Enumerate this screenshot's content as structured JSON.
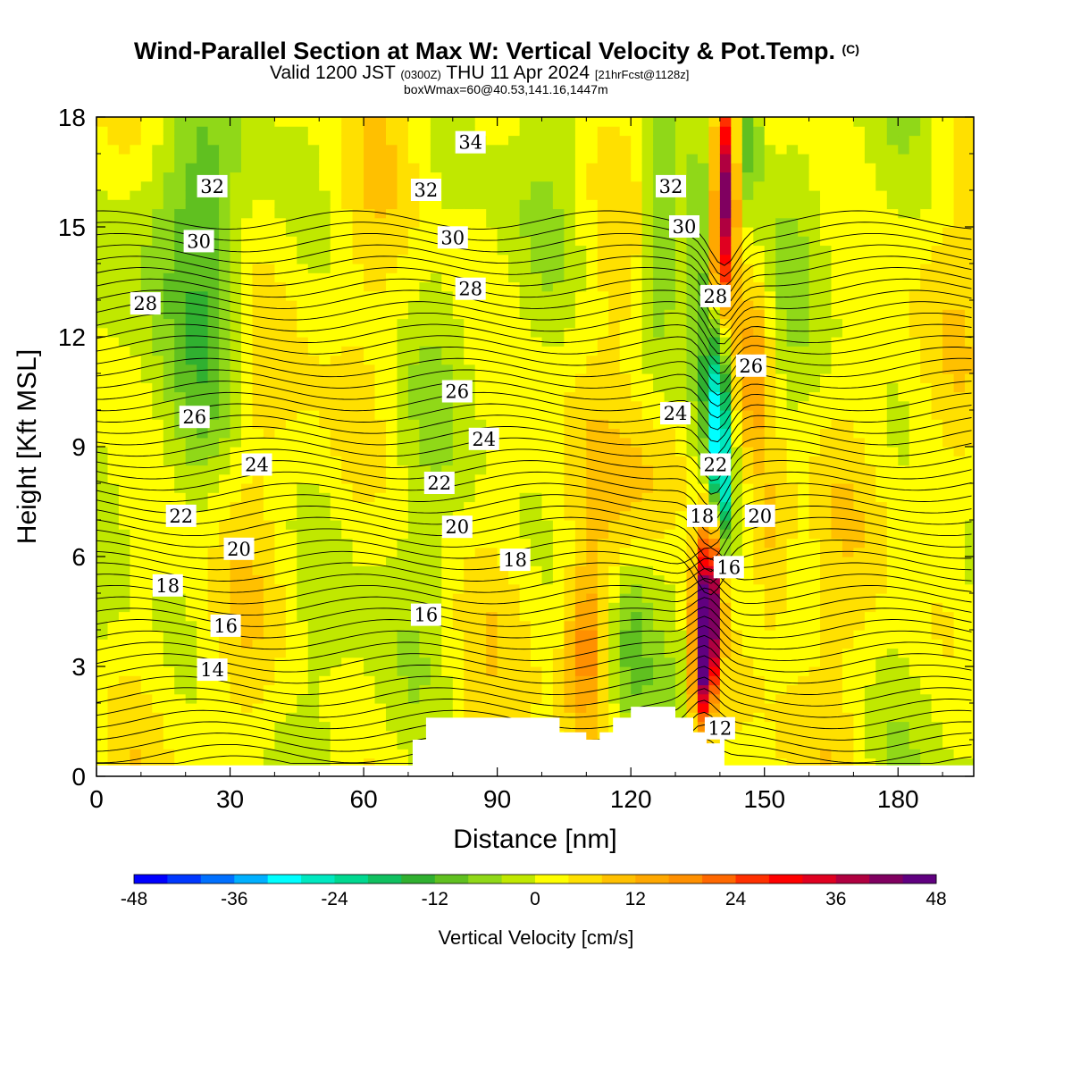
{
  "header": {
    "title": "Wind-Parallel Section at Max W: Vertical Velocity & Pot.Temp.",
    "copyright": "(C)",
    "valid_prefix": "Valid 1200 JST",
    "valid_utc": "(0300Z)",
    "valid_date": "THU 11 Apr 2024",
    "forecast": "[21hrFcst@1128z]",
    "box_info": "boxWmax=60@40.53,141.16,1447m"
  },
  "chart_data": {
    "type": "heatmap",
    "title": "Wind-Parallel Section at Max W: Vertical Velocity & Pot.Temp.",
    "xlabel": "Distance [nm]",
    "ylabel": "Height [Kft MSL]",
    "xlim": [
      0,
      197
    ],
    "ylim": [
      0,
      18
    ],
    "x_ticks": [
      0,
      30,
      60,
      90,
      120,
      150,
      180
    ],
    "y_ticks": [
      0,
      3,
      6,
      9,
      12,
      15,
      18
    ],
    "colorbar": {
      "title": "Vertical Velocity [cm/s]",
      "range": [
        -48,
        48
      ],
      "ticks": [
        -48,
        -36,
        -24,
        -12,
        0,
        12,
        24,
        36,
        48
      ],
      "colors": [
        "#0000ff",
        "#0038ff",
        "#0070ff",
        "#00b0ff",
        "#00ffff",
        "#00e8c0",
        "#00d890",
        "#10c060",
        "#30b030",
        "#60c020",
        "#90d818",
        "#c0e800",
        "#ffff00",
        "#ffe000",
        "#ffc000",
        "#ffa800",
        "#ff9000",
        "#ff6800",
        "#ff3000",
        "#ff0000",
        "#e00020",
        "#b00040",
        "#800060",
        "#600080"
      ]
    },
    "terrain": [
      [
        0,
        0.3
      ],
      [
        60,
        0.3
      ],
      [
        71,
        0.3
      ],
      [
        71,
        1.0
      ],
      [
        74,
        1.0
      ],
      [
        74,
        1.6
      ],
      [
        104,
        1.6
      ],
      [
        104,
        1.2
      ],
      [
        110,
        1.2
      ],
      [
        110,
        1.0
      ],
      [
        113,
        1.0
      ],
      [
        113,
        1.2
      ],
      [
        116,
        1.2
      ],
      [
        116,
        1.6
      ],
      [
        120,
        1.6
      ],
      [
        120,
        1.9
      ],
      [
        130,
        1.9
      ],
      [
        130,
        1.6
      ],
      [
        134,
        1.6
      ],
      [
        134,
        1.2
      ],
      [
        137,
        1.2
      ],
      [
        137,
        0.9
      ],
      [
        140,
        0.9
      ],
      [
        140,
        1.2
      ],
      [
        141,
        1.2
      ],
      [
        141,
        0.3
      ],
      [
        197,
        0.3
      ]
    ],
    "vertical_velocity_features": [
      {
        "kind": "updraft",
        "x": 137,
        "y": 3.7,
        "value": 44
      },
      {
        "kind": "updraft",
        "x": 141,
        "y": 16.5,
        "value": 36
      },
      {
        "kind": "downdraft",
        "x": 139,
        "y": 10.0,
        "value": -30
      },
      {
        "kind": "downdraft",
        "x": 140,
        "y": 8.0,
        "value": -24
      },
      {
        "kind": "downdraft",
        "x": 146,
        "y": 17.5,
        "value": -16
      },
      {
        "kind": "updraft",
        "x": 110,
        "y": 3.5,
        "value": 16
      },
      {
        "kind": "updraft",
        "x": 147,
        "y": 11.0,
        "value": 14
      }
    ],
    "theta_labels": [
      {
        "v": "34",
        "x": 84,
        "y": 17.3
      },
      {
        "v": "32",
        "x": 26,
        "y": 16.1
      },
      {
        "v": "32",
        "x": 74,
        "y": 16.0
      },
      {
        "v": "32",
        "x": 129,
        "y": 16.1
      },
      {
        "v": "30",
        "x": 23,
        "y": 14.6
      },
      {
        "v": "30",
        "x": 80,
        "y": 14.7
      },
      {
        "v": "30",
        "x": 132,
        "y": 15.0
      },
      {
        "v": "28",
        "x": 11,
        "y": 12.9
      },
      {
        "v": "28",
        "x": 84,
        "y": 13.3
      },
      {
        "v": "28",
        "x": 139,
        "y": 13.1
      },
      {
        "v": "26",
        "x": 22,
        "y": 9.8
      },
      {
        "v": "26",
        "x": 81,
        "y": 10.5
      },
      {
        "v": "26",
        "x": 147,
        "y": 11.2
      },
      {
        "v": "24",
        "x": 36,
        "y": 8.5
      },
      {
        "v": "24",
        "x": 87,
        "y": 9.2
      },
      {
        "v": "24",
        "x": 130,
        "y": 9.9
      },
      {
        "v": "22",
        "x": 19,
        "y": 7.1
      },
      {
        "v": "22",
        "x": 77,
        "y": 8.0
      },
      {
        "v": "22",
        "x": 139,
        "y": 8.5
      },
      {
        "v": "20",
        "x": 32,
        "y": 6.2
      },
      {
        "v": "20",
        "x": 81,
        "y": 6.8
      },
      {
        "v": "20",
        "x": 149,
        "y": 7.1
      },
      {
        "v": "18",
        "x": 16,
        "y": 5.2
      },
      {
        "v": "18",
        "x": 94,
        "y": 5.9
      },
      {
        "v": "18",
        "x": 136,
        "y": 7.1
      },
      {
        "v": "16",
        "x": 29,
        "y": 4.1
      },
      {
        "v": "16",
        "x": 74,
        "y": 4.4
      },
      {
        "v": "16",
        "x": 142,
        "y": 5.7
      },
      {
        "v": "14",
        "x": 26,
        "y": 2.9
      },
      {
        "v": "12",
        "x": 140,
        "y": 1.3
      }
    ]
  }
}
